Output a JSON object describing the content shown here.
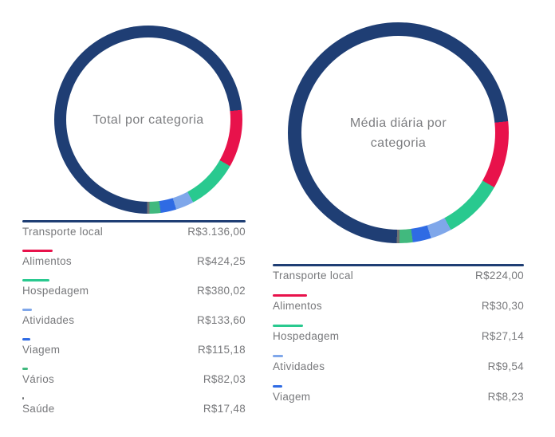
{
  "chart_data": [
    {
      "type": "pie",
      "subtype": "donut",
      "title": "Total por categoria",
      "title_lines": [
        "Total por categoria"
      ],
      "legend_position": "bottom",
      "categories": [
        "Transporte local",
        "Alimentos",
        "Hospedagem",
        "Atividades",
        "Viagem",
        "Vários",
        "Saúde"
      ],
      "values": [
        3136.0,
        424.25,
        380.02,
        133.6,
        115.18,
        82.03,
        17.48
      ],
      "legend": [
        {
          "label": "Transporte local",
          "display": "R$3.136,00",
          "amount": 3136.0,
          "color": "#1f3e74"
        },
        {
          "label": "Alimentos",
          "display": "R$424,25",
          "amount": 424.25,
          "color": "#e8124b"
        },
        {
          "label": "Hospedagem",
          "display": "R$380,02",
          "amount": 380.02,
          "color": "#29c98f"
        },
        {
          "label": "Atividades",
          "display": "R$133,60",
          "amount": 133.6,
          "color": "#7fa7ea"
        },
        {
          "label": "Viagem",
          "display": "R$115,18",
          "amount": 115.18,
          "color": "#2f6be4"
        },
        {
          "label": "Vários",
          "display": "R$82,03",
          "amount": 82.03,
          "color": "#41b97e"
        },
        {
          "label": "Saúde",
          "display": "R$17,48",
          "amount": 17.48,
          "color": "#6f7275"
        }
      ],
      "start_angle_deg": 84,
      "segments": [
        {
          "name": "Alimentos",
          "color": "#e8124b",
          "fraction": 0.0989
        },
        {
          "name": "Hospedagem",
          "color": "#29c98f",
          "fraction": 0.0886
        },
        {
          "name": "Atividades",
          "color": "#7fa7ea",
          "fraction": 0.0312
        },
        {
          "name": "Viagem",
          "color": "#2f6be4",
          "fraction": 0.0269
        },
        {
          "name": "Vários",
          "color": "#41b97e",
          "fraction": 0.0191
        },
        {
          "name": "Saúde",
          "color": "#6f7275",
          "fraction": 0.0041
        },
        {
          "name": "Transporte local",
          "color": "#1f3e74",
          "fraction": 0.7312
        }
      ]
    },
    {
      "type": "pie",
      "subtype": "donut",
      "title": "Média diária por categoria",
      "title_lines": [
        "Média diária por",
        "categoria"
      ],
      "legend_position": "bottom",
      "categories": [
        "Transporte local",
        "Alimentos",
        "Hospedagem",
        "Atividades",
        "Viagem"
      ],
      "values": [
        224.0,
        30.3,
        27.14,
        9.54,
        8.23
      ],
      "legend": [
        {
          "label": "Transporte local",
          "display": "R$224,00",
          "amount": 224.0,
          "color": "#1f3e74"
        },
        {
          "label": "Alimentos",
          "display": "R$30,30",
          "amount": 30.3,
          "color": "#e8124b"
        },
        {
          "label": "Hospedagem",
          "display": "R$27,14",
          "amount": 27.14,
          "color": "#29c98f"
        },
        {
          "label": "Atividades",
          "display": "R$9,54",
          "amount": 9.54,
          "color": "#7fa7ea"
        },
        {
          "label": "Viagem",
          "display": "R$8,23",
          "amount": 8.23,
          "color": "#2f6be4"
        }
      ],
      "start_angle_deg": 84,
      "segments": [
        {
          "name": "Alimentos",
          "color": "#e8124b",
          "fraction": 0.0989
        },
        {
          "name": "Hospedagem",
          "color": "#29c98f",
          "fraction": 0.0886
        },
        {
          "name": "Atividades",
          "color": "#7fa7ea",
          "fraction": 0.0312
        },
        {
          "name": "Viagem",
          "color": "#2f6be4",
          "fraction": 0.0269
        },
        {
          "name": "Vários",
          "color": "#41b97e",
          "fraction": 0.0191
        },
        {
          "name": "Saúde",
          "color": "#6f7275",
          "fraction": 0.0041
        },
        {
          "name": "Transporte local",
          "color": "#1f3e74",
          "fraction": 0.7312
        }
      ]
    }
  ],
  "palette": {
    "navy": "#1f3e74",
    "crimson": "#e8124b",
    "emerald": "#29c98f",
    "periwinkle": "#7fa7ea",
    "royal_blue": "#2f6be4",
    "green": "#41b97e",
    "gray": "#6f7275",
    "text": "#77787b",
    "title_text": "#7c7d80",
    "background": "#ffffff"
  }
}
